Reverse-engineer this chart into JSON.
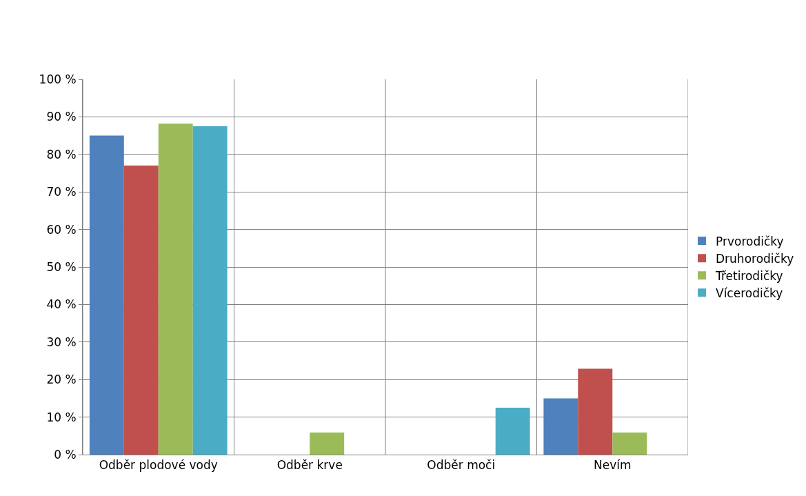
{
  "chart_data": {
    "type": "bar",
    "categories": [
      "Odběr plodové vody",
      "Odběr krve",
      "Odběr moči",
      "Nevím"
    ],
    "series": [
      {
        "name": "Prvorodičky",
        "color": "#4f81bd",
        "values": [
          85,
          0,
          0,
          15
        ]
      },
      {
        "name": "Druhorodičky",
        "color": "#c0504d",
        "values": [
          77,
          0,
          0,
          22.9
        ]
      },
      {
        "name": "Třetirodičky",
        "color": "#9bbb59",
        "values": [
          88.2,
          5.9,
          0,
          5.9
        ]
      },
      {
        "name": "Vícerodičky",
        "color": "#4bacc6",
        "values": [
          87.5,
          0,
          12.5,
          0
        ]
      }
    ],
    "ylim": [
      0,
      100
    ],
    "yticks": [
      {
        "value": 0,
        "label": "0 %"
      },
      {
        "value": 10,
        "label": "10 %"
      },
      {
        "value": 20,
        "label": "20 %"
      },
      {
        "value": 30,
        "label": "30 %"
      },
      {
        "value": 40,
        "label": "40 %"
      },
      {
        "value": 50,
        "label": "50 %"
      },
      {
        "value": 60,
        "label": "60 %"
      },
      {
        "value": 70,
        "label": "70 %"
      },
      {
        "value": 80,
        "label": "80 %"
      },
      {
        "value": 90,
        "label": "90 %"
      },
      {
        "value": 100,
        "label": "100 %"
      }
    ],
    "grid": true,
    "legend": "right"
  }
}
